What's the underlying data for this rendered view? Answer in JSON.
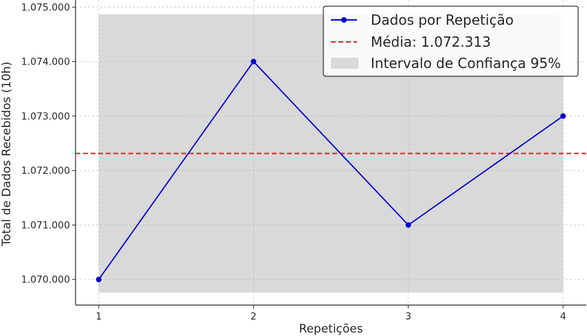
{
  "chart_data": {
    "type": "line",
    "x": [
      1,
      2,
      3,
      4
    ],
    "x_tick_labels": [
      "1",
      "2",
      "3",
      "4"
    ],
    "y_tick_values": [
      1070000,
      1071000,
      1072000,
      1073000,
      1074000,
      1075000
    ],
    "y_tick_labels": [
      "1.070.000",
      "1.071.000",
      "1.072.000",
      "1.073.000",
      "1.074.000",
      "1.075.000"
    ],
    "series": [
      {
        "name": "Dados por Repetição",
        "values": [
          1070000,
          1074000,
          1071000,
          1073000
        ],
        "color": "#0000cc",
        "marker": "circle"
      }
    ],
    "mean": {
      "name": "Média: 1.072.313",
      "value": 1072313,
      "color": "#d62728",
      "style": "dashed"
    },
    "confidence_band": {
      "name": "Intervalo de Confiança 95%",
      "low": 1069760,
      "high": 1074865,
      "color": "#d9d9d9"
    },
    "xlabel": "Repetições",
    "ylabel": "Total de Dados Recebidos (10h)",
    "xlim": [
      0.85,
      4.15
    ],
    "ylim": [
      1069530,
      1075130
    ],
    "grid": true,
    "legend_position": "top-right"
  }
}
